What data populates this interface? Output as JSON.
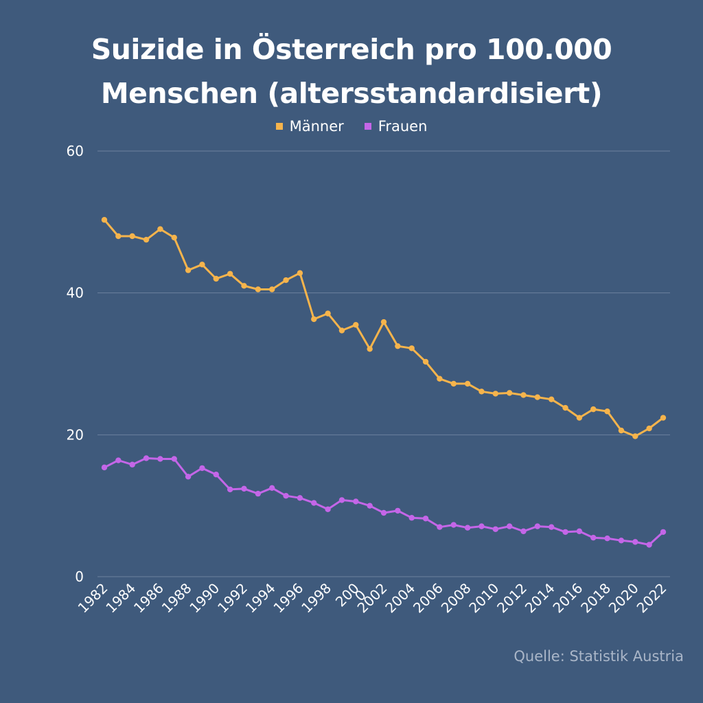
{
  "chart_data": {
    "type": "line",
    "title_lines": [
      "Suizide in Österreich pro 100.000",
      "Menschen (altersstandardisiert)"
    ],
    "source": "Quelle: Statistik Austria",
    "legend_position": "top-center",
    "grid": true,
    "ylim": [
      0,
      60
    ],
    "yticks": [
      0,
      20,
      40,
      60
    ],
    "x": [
      1982,
      1983,
      1984,
      1985,
      1986,
      1987,
      1988,
      1989,
      1990,
      1991,
      1992,
      1993,
      1994,
      1995,
      1996,
      1997,
      1998,
      1999,
      2000,
      2001,
      2002,
      2003,
      2004,
      2005,
      2006,
      2007,
      2008,
      2009,
      2010,
      2011,
      2012,
      2013,
      2014,
      2015,
      2016,
      2017,
      2018,
      2019,
      2020,
      2021,
      2022
    ],
    "xtick_labels": [
      "1982",
      "1984",
      "1986",
      "1988",
      "1990",
      "1992",
      "1994",
      "1996",
      "1998",
      "200\n0",
      "2002",
      "2004",
      "2006",
      "2008",
      "2010",
      "2012",
      "2014",
      "2016",
      "2018",
      "2020",
      "2022"
    ],
    "series": [
      {
        "name": "Männer",
        "color": "#f6b44c",
        "values": [
          50.3,
          48.0,
          48.0,
          47.5,
          49.0,
          47.8,
          43.2,
          44.0,
          42.0,
          42.7,
          41.0,
          40.5,
          40.5,
          41.8,
          42.8,
          36.3,
          37.1,
          34.7,
          35.5,
          32.1,
          35.9,
          32.5,
          32.2,
          30.3,
          27.9,
          27.2,
          27.2,
          26.1,
          25.8,
          25.9,
          25.6,
          25.3,
          25.0,
          23.8,
          22.4,
          23.6,
          23.3,
          20.6,
          19.8,
          20.9,
          22.4
        ]
      },
      {
        "name": "Frauen",
        "color": "#c466e8",
        "values": [
          15.4,
          16.4,
          15.8,
          16.7,
          16.6,
          16.6,
          14.1,
          15.3,
          14.4,
          12.3,
          12.4,
          11.7,
          12.5,
          11.4,
          11.1,
          10.4,
          9.5,
          10.8,
          10.6,
          10.0,
          9.0,
          9.3,
          8.3,
          8.2,
          7.0,
          7.3,
          6.9,
          7.1,
          6.7,
          7.1,
          6.4,
          7.1,
          7.0,
          6.3,
          6.4,
          5.5,
          5.4,
          5.1,
          4.9,
          4.5,
          6.3
        ]
      }
    ]
  }
}
